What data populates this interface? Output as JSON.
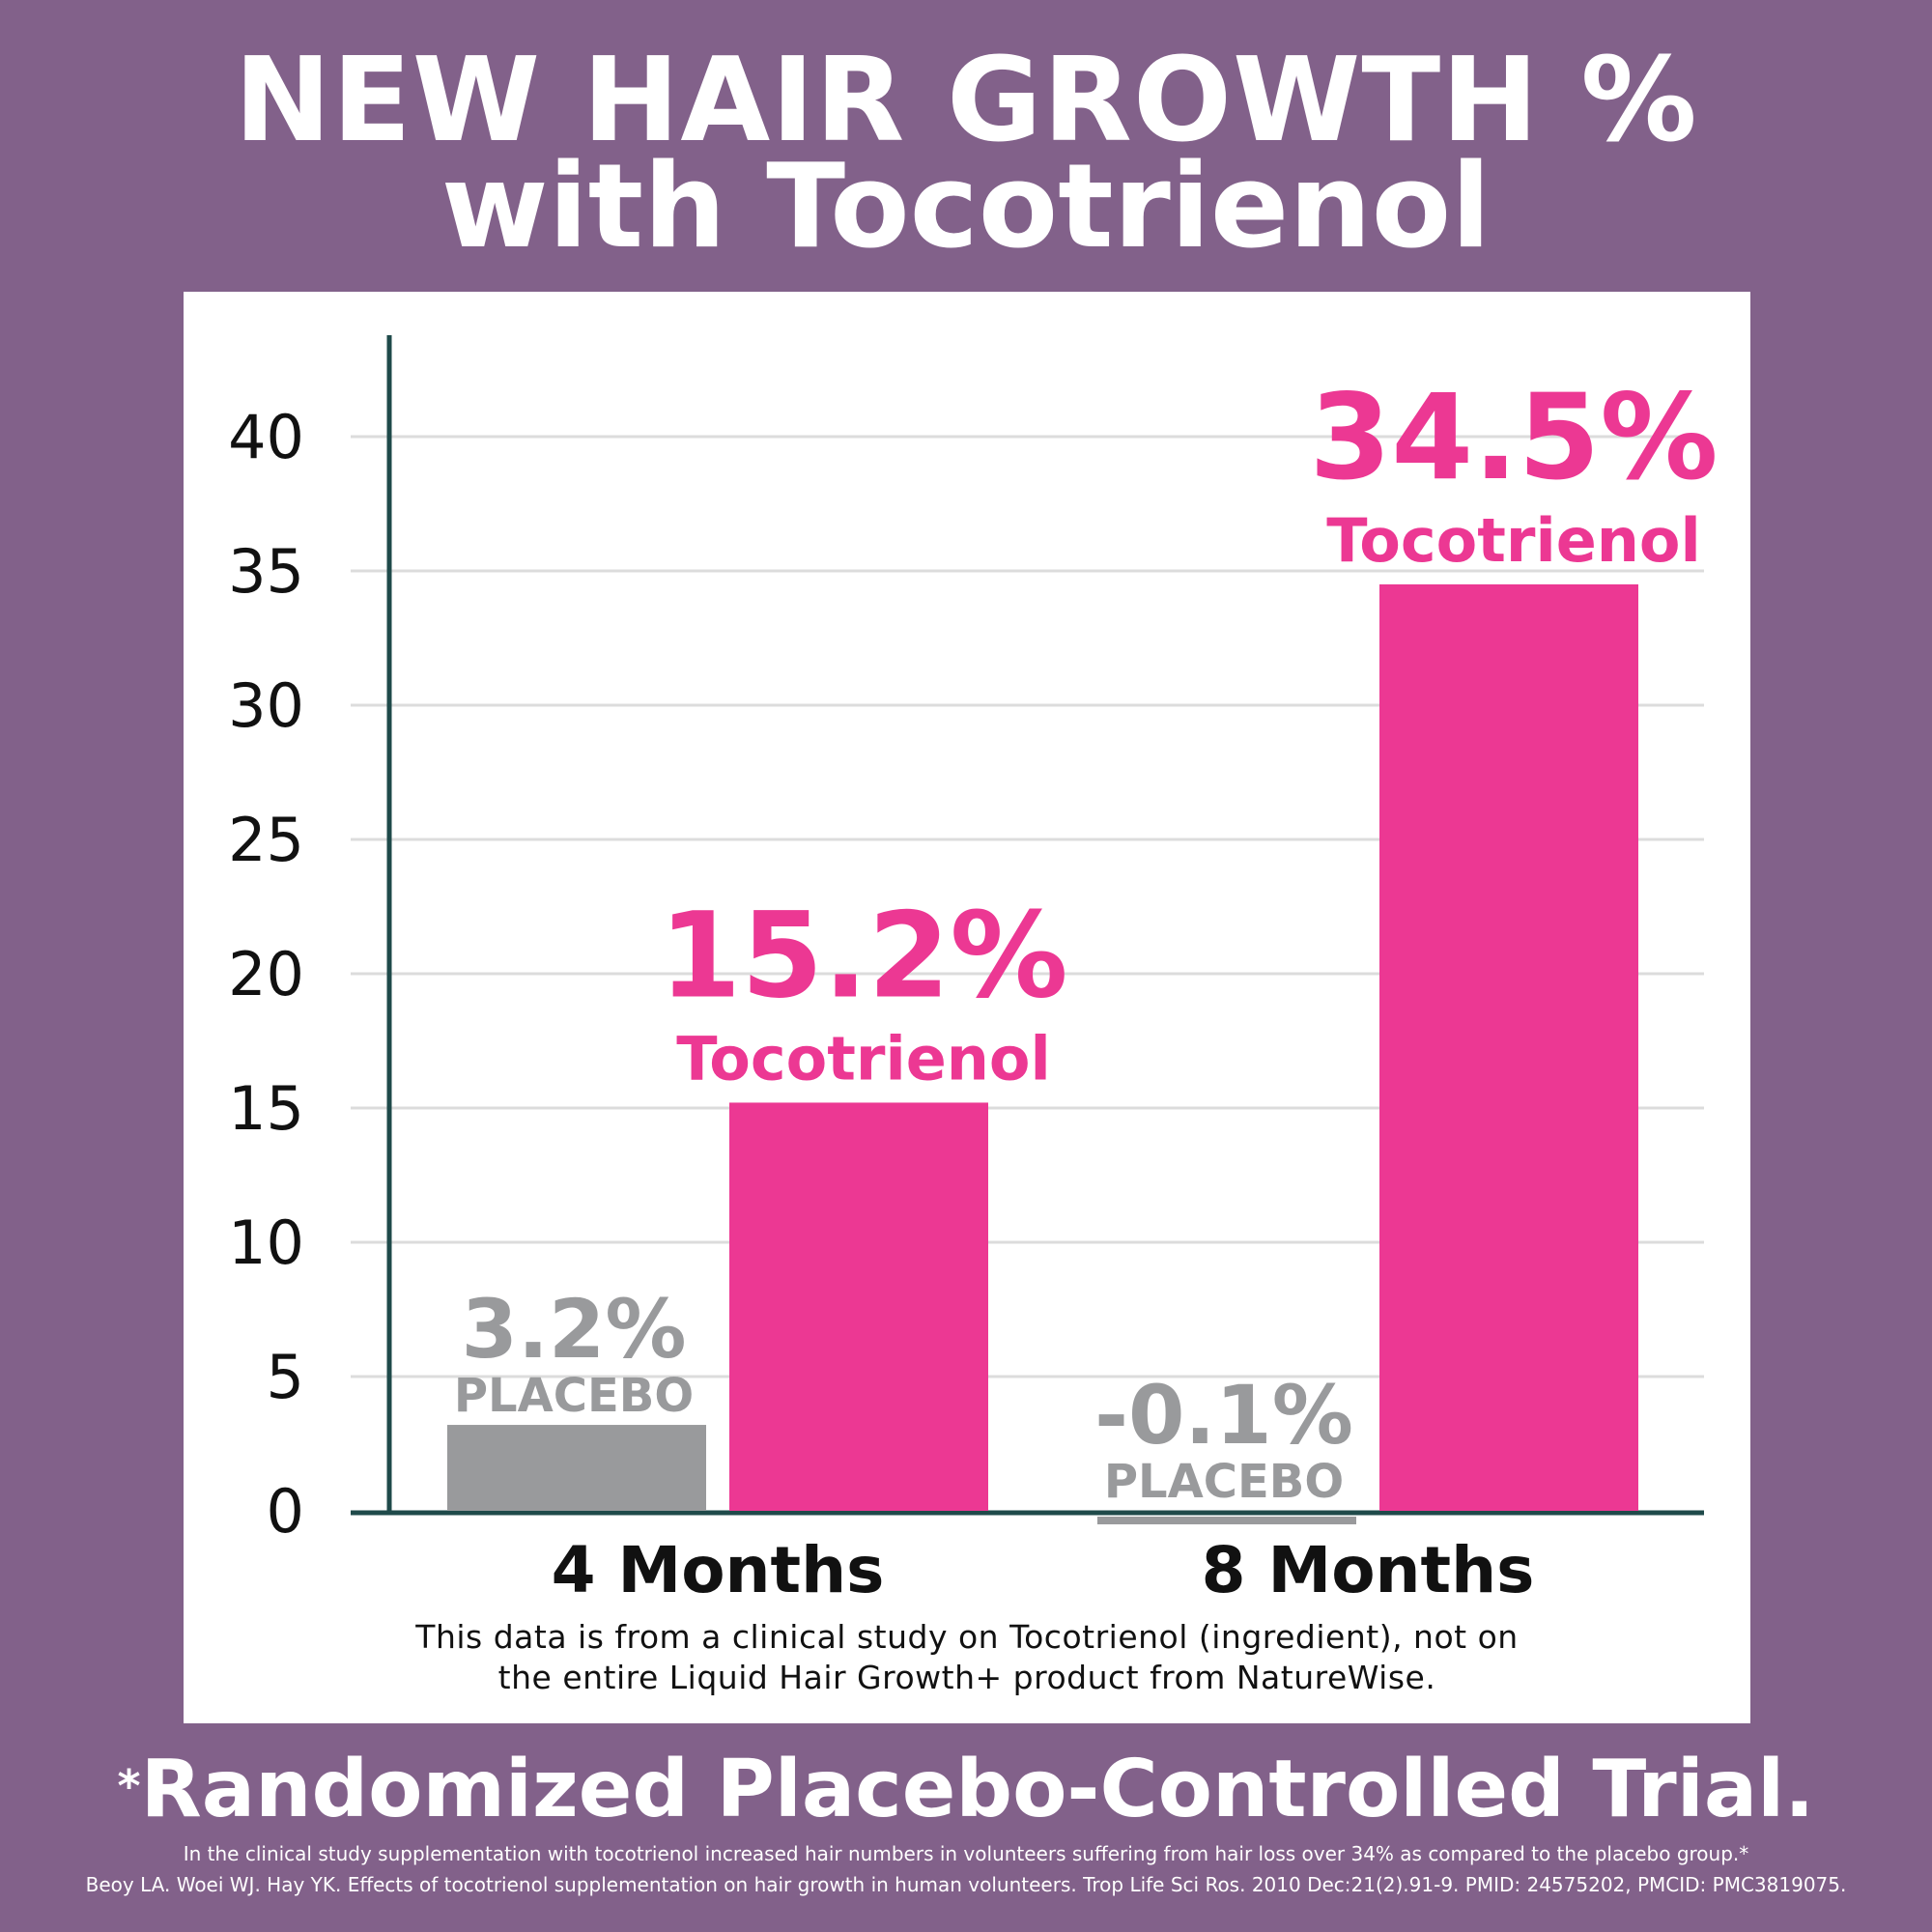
{
  "title": {
    "line1": "NEW HAIR GROWTH %",
    "line2": "with Tocotrienol"
  },
  "colors": {
    "background": "#82618a",
    "tocotrienol": "#ec3893",
    "placebo": "#999a9c",
    "axis": "#1f4a4a",
    "grid": "#dcdcdc"
  },
  "chart_data": {
    "type": "bar",
    "categories": [
      "4 Months",
      "8 Months"
    ],
    "series": [
      {
        "name": "PLACEBO",
        "values": [
          3.2,
          -0.1
        ],
        "labels": [
          "3.2%",
          "-0.1%"
        ],
        "color": "#999a9c"
      },
      {
        "name": "Tocotrienol",
        "values": [
          15.2,
          34.5
        ],
        "labels": [
          "15.2%",
          "34.5%"
        ],
        "color": "#ec3893"
      }
    ],
    "yticks": [
      0,
      5,
      10,
      15,
      20,
      25,
      30,
      35,
      40
    ],
    "ylim": [
      0,
      40
    ],
    "grid": true,
    "legend": "none"
  },
  "disclaimer": {
    "line1": "This data is from a clinical study on Tocotrienol (ingredient), not on",
    "line2": "the entire Liquid Hair Growth+ product from NatureWise."
  },
  "footer": {
    "asterisk": "*",
    "main": "Randomized Placebo-Controlled Trial.",
    "note1": "In the clinical study supplementation with tocotrienol increased hair numbers in volunteers suffering from hair loss over 34% as compared to the placebo group.*",
    "note2": "Beoy LA. Woei WJ. Hay YK. Effects of tocotrienol supplementation on hair growth in human volunteers. Trop Life Sci Ros. 2010 Dec:21(2).91-9. PMID: 24575202, PMCID: PMC3819075."
  }
}
